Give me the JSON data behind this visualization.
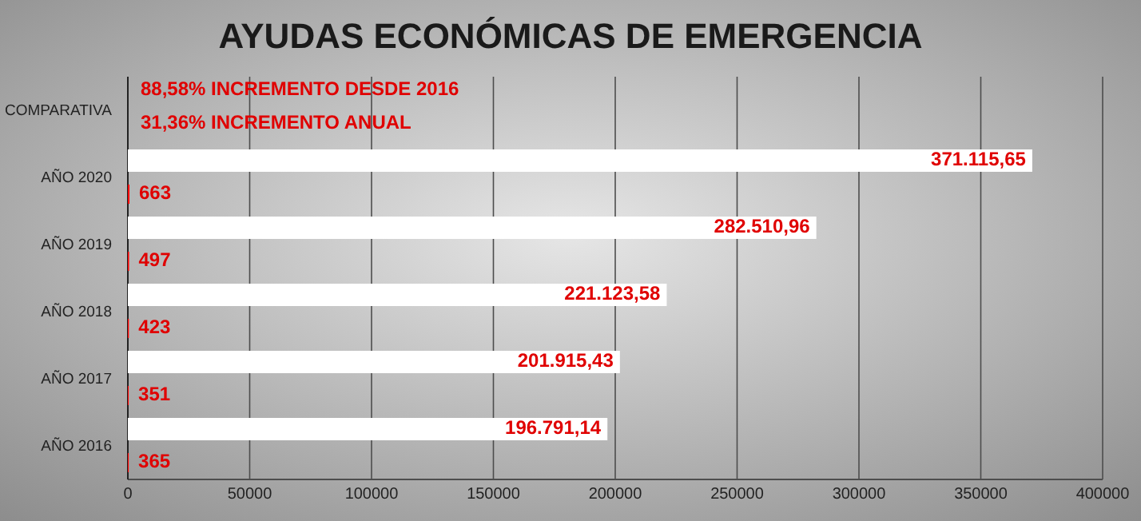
{
  "chart_data": {
    "type": "bar",
    "orientation": "horizontal",
    "title": "AYUDAS ECONÓMICAS DE EMERGENCIA",
    "categories": [
      "COMPARATIVA",
      "AÑO 2020",
      "AÑO 2019",
      "AÑO 2018",
      "AÑO 2017",
      "AÑO 2016"
    ],
    "series": [
      {
        "color": "#ffffff",
        "values": [
          null,
          371115.65,
          282510.96,
          221123.58,
          201915.43,
          196791.14
        ],
        "value_labels": [
          null,
          "371.115,65",
          "282.510,96",
          "221.123,58",
          "201.915,43",
          "196.791,14"
        ]
      },
      {
        "color": "#ff0000",
        "values": [
          null,
          663,
          497,
          423,
          351,
          365
        ],
        "value_labels": [
          null,
          "663",
          "497",
          "423",
          "351",
          "365"
        ]
      }
    ],
    "xlim": [
      0,
      400000
    ],
    "xticks": [
      0,
      50000,
      100000,
      150000,
      200000,
      250000,
      300000,
      350000,
      400000
    ],
    "grid": "x",
    "annotations": [
      "88,58% INCREMENTO DESDE 2016",
      "31,36% INCREMENTO ANUAL"
    ]
  }
}
